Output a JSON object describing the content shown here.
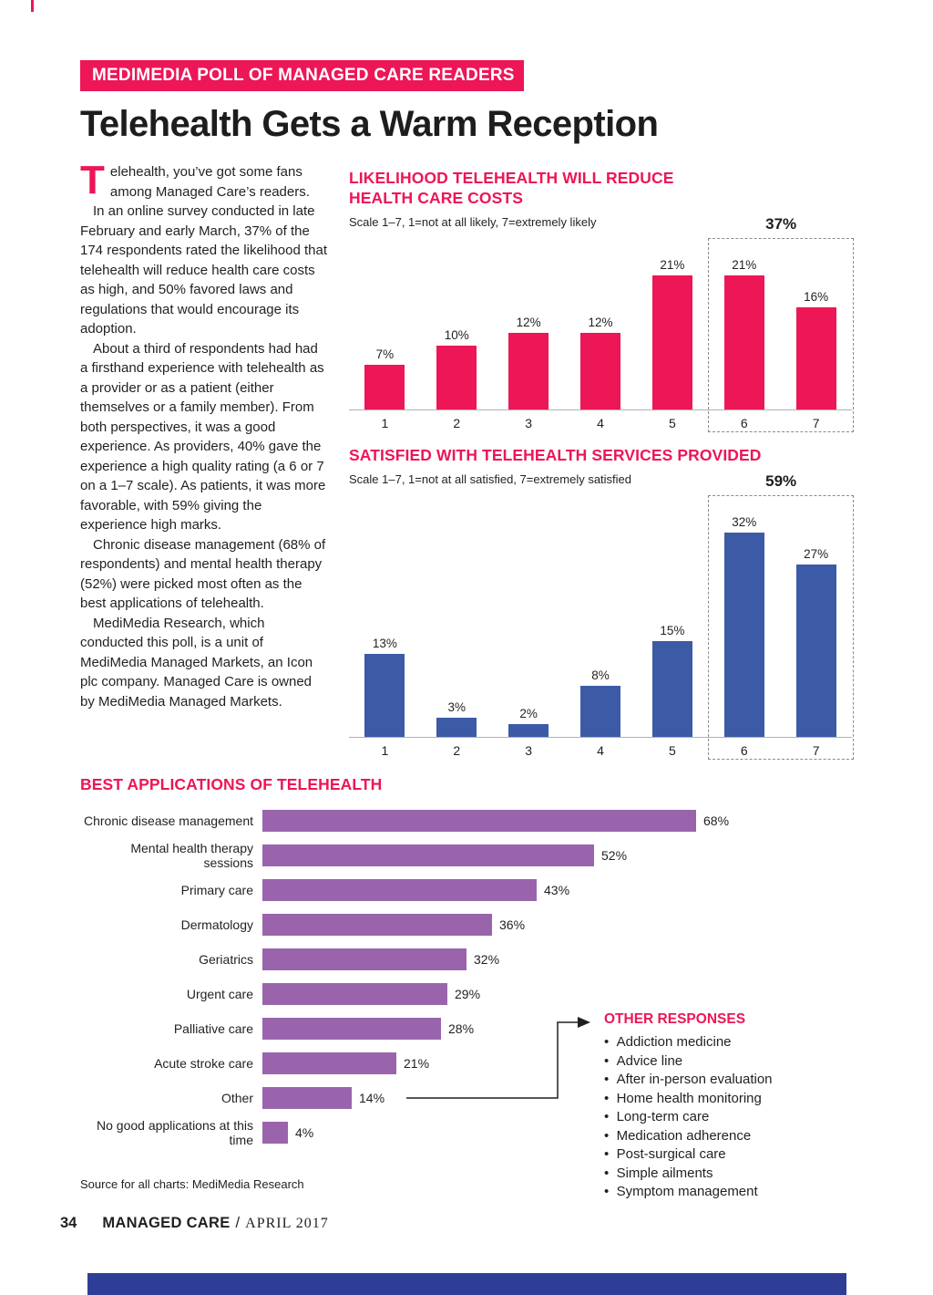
{
  "colors": {
    "accent_pink": "#ed1656",
    "bar_blue": "#3c5aa6",
    "bar_purple": "#9a64ad",
    "footer_blue": "#2e3d96",
    "text": "#231f20"
  },
  "page": {
    "banner": "MEDIMEDIA POLL OF MANAGED CARE READERS",
    "title": "Telehealth Gets a Warm Reception",
    "article": {
      "dropcap": "T",
      "paragraphs": [
        "elehealth, you’ve got some fans among Managed Care’s readers.",
        "In an online survey conducted in late February and early March, 37% of the 174 respondents rated the likelihood that telehealth will reduce health care costs as high, and 50% favored laws and regulations that would encourage its adoption.",
        "About a third of respondents had had a firsthand experience with telehealth as a provider or as a patient (either themselves or a family member). From both perspectives, it was a good experience. As providers, 40% gave the experience a high quality rating (a 6 or 7 on a 1–7 scale). As patients, it was more favorable, with 59% giving the experience high marks.",
        "Chronic disease management (68% of respondents) and mental health therapy (52%) were picked most often as the best applications of telehealth.",
        "MediMedia Research, which conducted this poll, is a unit of MediMedia Managed Markets, an Icon plc company. Managed Care is owned by MediMedia Managed Markets."
      ]
    },
    "source_note": "Source for all charts: MediMedia Research",
    "footer": {
      "page_number": "34",
      "magazine": "MANAGED CARE",
      "separator": "/",
      "issue": "APRIL 2017"
    }
  },
  "chart_data": [
    {
      "type": "bar",
      "orientation": "vertical",
      "title": "LIKELIHOOD TELEHEALTH WILL REDUCE HEALTH CARE COSTS",
      "subtitle": "Scale 1–7, 1=not at all likely, 7=extremely likely",
      "categories": [
        "1",
        "2",
        "3",
        "4",
        "5",
        "6",
        "7"
      ],
      "values": [
        7,
        10,
        12,
        12,
        21,
        21,
        16
      ],
      "value_labels": [
        "7%",
        "10%",
        "12%",
        "12%",
        "21%",
        "21%",
        "16%"
      ],
      "highlight": {
        "categories": [
          "6",
          "7"
        ],
        "label": "37%"
      },
      "bar_color": "#ed1656",
      "ylim": [
        0,
        25
      ],
      "grid": false,
      "legend": "none"
    },
    {
      "type": "bar",
      "orientation": "vertical",
      "title": "SATISFIED WITH TELEHEALTH SERVICES PROVIDED",
      "subtitle": "Scale 1–7, 1=not at all satisfied, 7=extremely satisfied",
      "categories": [
        "1",
        "2",
        "3",
        "4",
        "5",
        "6",
        "7"
      ],
      "values": [
        13,
        3,
        2,
        8,
        15,
        32,
        27
      ],
      "value_labels": [
        "13%",
        "3%",
        "2%",
        "8%",
        "15%",
        "32%",
        "27%"
      ],
      "highlight": {
        "categories": [
          "6",
          "7"
        ],
        "label": "59%"
      },
      "bar_color": "#3c5aa6",
      "ylim": [
        0,
        35
      ],
      "grid": false,
      "legend": "none"
    },
    {
      "type": "bar",
      "orientation": "horizontal",
      "title": "BEST APPLICATIONS OF TELEHEALTH",
      "categories": [
        "Chronic disease management",
        "Mental health therapy sessions",
        "Primary care",
        "Dermatology",
        "Geriatrics",
        "Urgent care",
        "Palliative care",
        "Acute stroke care",
        "Other",
        "No good applications at this time"
      ],
      "values": [
        68,
        52,
        43,
        36,
        32,
        29,
        28,
        21,
        14,
        4
      ],
      "value_labels": [
        "68%",
        "52%",
        "43%",
        "36%",
        "32%",
        "29%",
        "28%",
        "21%",
        "14%",
        "4%"
      ],
      "bar_color": "#9a64ad",
      "xlim": [
        0,
        70
      ],
      "grid": false,
      "legend": "none"
    }
  ],
  "other_responses": {
    "title": "OTHER RESPONSES",
    "items": [
      "Addiction medicine",
      "Advice line",
      "After in-person evaluation",
      "Home health monitoring",
      "Long-term care",
      "Medication adherence",
      "Post-surgical care",
      "Simple ailments",
      "Symptom management"
    ]
  }
}
